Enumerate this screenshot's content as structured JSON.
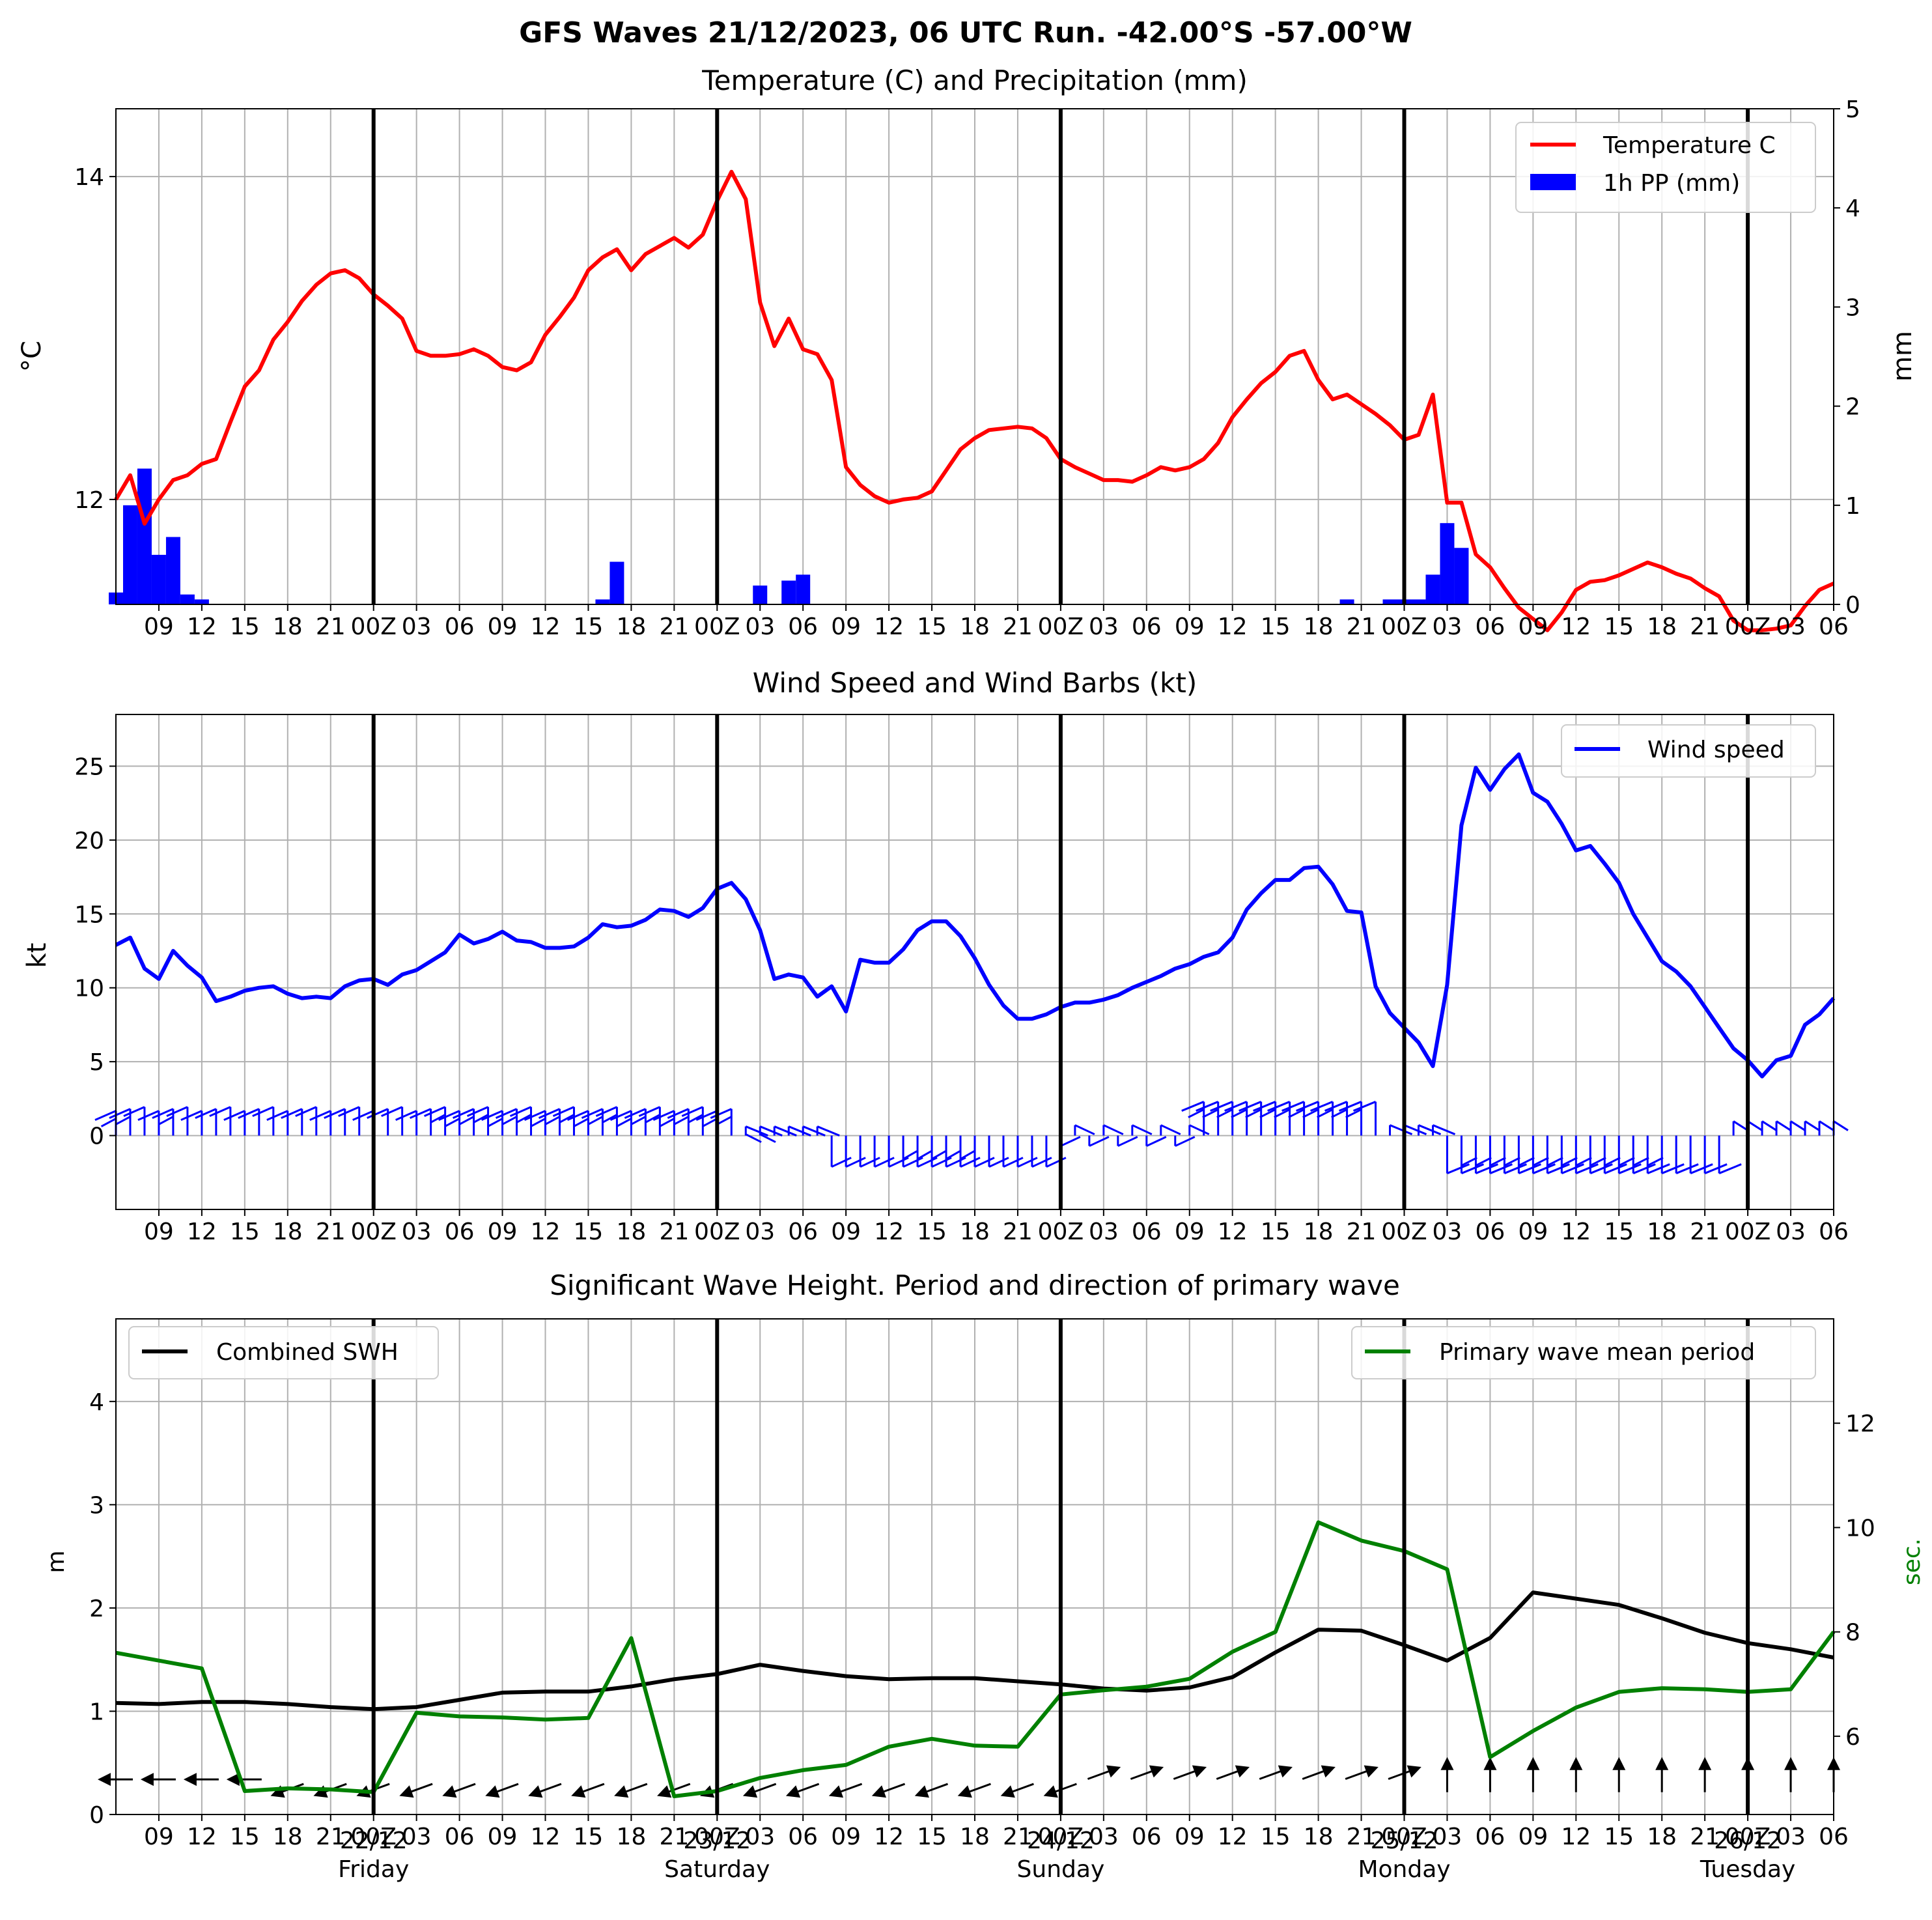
{
  "figure_title": "GFS Waves 21/12/2023, 06 UTC Run. -42.00°S -57.00°W",
  "colors": {
    "temperature": "#ff0000",
    "precip": "#0000ff",
    "wind": "#0000ff",
    "swh": "#000000",
    "period": "#008000",
    "grid": "#b0b0b0"
  },
  "x_axis": {
    "tick_labels": [
      "09",
      "12",
      "15",
      "18",
      "21",
      "00Z",
      "03",
      "06",
      "09",
      "12",
      "15",
      "18",
      "21",
      "00Z",
      "03",
      "06",
      "09",
      "12",
      "15",
      "18",
      "21",
      "00Z",
      "03",
      "06",
      "09",
      "12",
      "15",
      "18",
      "21",
      "00Z",
      "03",
      "06",
      "09",
      "12",
      "15",
      "18",
      "21",
      "00Z",
      "03",
      "06"
    ],
    "day_labels": [
      {
        "date": "22/12",
        "day": "Friday"
      },
      {
        "date": "23/12",
        "day": "Saturday"
      },
      {
        "date": "24/12",
        "day": "Sunday"
      },
      {
        "date": "25/12",
        "day": "Monday"
      },
      {
        "date": "26/12",
        "day": "Tuesday"
      }
    ]
  },
  "chart_data": [
    {
      "type": "line",
      "title": "Temperature (C) and Precipitation (mm)",
      "ylabel": "°C",
      "ylabel_right": "mm",
      "x_start": "2023-12-21 06Z",
      "x_end": "2023-12-26 06Z",
      "x_step_hours": 1,
      "ylim": [
        11.35,
        14.42
      ],
      "yticks": [
        12,
        14
      ],
      "ylim_right": [
        0,
        5
      ],
      "yticks_right": [
        0,
        1,
        2,
        3,
        4,
        5
      ],
      "grid": true,
      "legend": "top-right",
      "legend_entries": [
        "Temperature C",
        "1h PP (mm)"
      ],
      "series": [
        {
          "name": "Temperature C",
          "x_hours": [
            0,
            1,
            2,
            3,
            4,
            5,
            6,
            7,
            8,
            9,
            10,
            11,
            12,
            13,
            14,
            15,
            16,
            17,
            18,
            19,
            20,
            21,
            22,
            23,
            24,
            25,
            26,
            27,
            28,
            29,
            30,
            31,
            32,
            33,
            34,
            35,
            36,
            37,
            38,
            39,
            40,
            41,
            42,
            43,
            44,
            45,
            46,
            47,
            48,
            49,
            50,
            51,
            52,
            53,
            54,
            55,
            56,
            57,
            58,
            59,
            60,
            61,
            62,
            63,
            64,
            65,
            66,
            67,
            68,
            69,
            70,
            71,
            72,
            73,
            74,
            75,
            76,
            77,
            78,
            79,
            80,
            81,
            82,
            83,
            84,
            85,
            86,
            87,
            88,
            89,
            90,
            91,
            92,
            93,
            94,
            95,
            96,
            97,
            98,
            99,
            100,
            101,
            102,
            103,
            104,
            105,
            106,
            107,
            108,
            109,
            110,
            111,
            112,
            113,
            114,
            115,
            116,
            117,
            118,
            119,
            120
          ],
          "values": [
            12.0,
            12.15,
            11.85,
            12.0,
            12.12,
            12.15,
            12.22,
            12.25,
            12.48,
            12.7,
            12.8,
            12.99,
            13.1,
            13.23,
            13.33,
            13.4,
            13.42,
            13.37,
            13.27,
            13.2,
            13.12,
            12.92,
            12.89,
            12.89,
            12.9,
            12.93,
            12.89,
            12.82,
            12.8,
            12.85,
            13.02,
            13.13,
            13.25,
            13.42,
            13.5,
            13.55,
            13.42,
            13.52,
            13.57,
            13.62,
            13.56,
            13.64,
            13.85,
            14.03,
            13.86,
            13.22,
            12.95,
            13.12,
            12.93,
            12.9,
            12.74,
            12.2,
            12.09,
            12.02,
            11.98,
            12.0,
            12.01,
            12.05,
            12.18,
            12.31,
            12.38,
            12.43,
            12.44,
            12.45,
            12.44,
            12.38,
            12.25,
            12.2,
            12.16,
            12.12,
            12.12,
            12.11,
            12.15,
            12.2,
            12.18,
            12.2,
            12.25,
            12.35,
            12.51,
            12.62,
            12.72,
            12.79,
            12.89,
            12.92,
            12.74,
            12.62,
            12.65,
            12.59,
            12.53,
            12.46,
            12.37,
            12.4,
            12.65,
            11.98,
            11.98,
            11.66,
            11.58,
            11.45,
            11.33,
            11.26,
            11.19,
            11.3,
            11.44,
            11.49,
            11.5,
            11.53,
            11.57,
            11.61,
            11.58,
            11.54,
            11.51,
            11.45,
            11.4,
            11.25,
            11.19,
            11.19,
            11.2,
            11.22,
            11.34,
            11.44,
            11.48
          ]
        },
        {
          "name": "1h PP (mm)",
          "x_hours": [
            0,
            1,
            2,
            3,
            4,
            5,
            6,
            7,
            34,
            35,
            45,
            47,
            48,
            86,
            89,
            90,
            91,
            92,
            93,
            94,
            95
          ],
          "values": [
            0.12,
            1.0,
            1.37,
            0.5,
            0.68,
            0.1,
            0.05,
            0.0,
            0.05,
            0.43,
            0.19,
            0.24,
            0.3,
            0.05,
            0.05,
            0.05,
            0.05,
            0.3,
            0.82,
            0.57,
            0.0
          ]
        }
      ]
    },
    {
      "type": "line",
      "title": "Wind Speed and Wind Barbs (kt)",
      "ylabel": "kt",
      "x_start": "2023-12-21 06Z",
      "x_end": "2023-12-26 06Z",
      "x_step_hours": 1,
      "ylim": [
        -5,
        28.5
      ],
      "yticks": [
        0,
        5,
        10,
        15,
        20,
        25
      ],
      "grid": true,
      "legend": "top-right",
      "legend_entries": [
        "Wind speed"
      ],
      "series": [
        {
          "name": "Wind speed",
          "x_hours": [
            0,
            1,
            2,
            3,
            4,
            5,
            6,
            7,
            8,
            9,
            10,
            11,
            12,
            13,
            14,
            15,
            16,
            17,
            18,
            19,
            20,
            21,
            22,
            23,
            24,
            25,
            26,
            27,
            28,
            29,
            30,
            31,
            32,
            33,
            34,
            35,
            36,
            37,
            38,
            39,
            40,
            41,
            42,
            43,
            44,
            45,
            46,
            47,
            48,
            49,
            50,
            51,
            52,
            53,
            54,
            55,
            56,
            57,
            58,
            59,
            60,
            61,
            62,
            63,
            64,
            65,
            66,
            67,
            68,
            69,
            70,
            71,
            72,
            73,
            74,
            75,
            76,
            77,
            78,
            79,
            80,
            81,
            82,
            83,
            84,
            85,
            86,
            87,
            88,
            89,
            90,
            91,
            92,
            93,
            94,
            95,
            96,
            97,
            98,
            99,
            100,
            101,
            102,
            103,
            104,
            105,
            106,
            107,
            108,
            109,
            110,
            111,
            112,
            113,
            114,
            115,
            116,
            117,
            118,
            119,
            120
          ],
          "values": [
            12.9,
            13.4,
            11.3,
            10.6,
            12.5,
            11.5,
            10.7,
            9.1,
            9.4,
            9.8,
            10.0,
            10.1,
            9.6,
            9.3,
            9.4,
            9.3,
            10.1,
            10.5,
            10.6,
            10.2,
            10.9,
            11.2,
            11.8,
            12.4,
            13.6,
            13.0,
            13.3,
            13.8,
            13.2,
            13.1,
            12.7,
            12.7,
            12.8,
            13.4,
            14.3,
            14.1,
            14.2,
            14.6,
            15.3,
            15.2,
            14.8,
            15.4,
            16.7,
            17.1,
            16.0,
            13.9,
            10.6,
            10.9,
            10.7,
            9.4,
            10.1,
            8.4,
            11.9,
            11.7,
            11.7,
            12.6,
            13.9,
            14.5,
            14.5,
            13.5,
            12.0,
            10.2,
            8.8,
            7.9,
            7.9,
            8.2,
            8.7,
            9.0,
            9.0,
            9.2,
            9.5,
            10.0,
            10.4,
            10.8,
            11.3,
            11.6,
            12.1,
            12.4,
            13.4,
            15.3,
            16.4,
            17.3,
            17.3,
            18.1,
            18.2,
            17.0,
            15.2,
            15.1,
            10.1,
            8.3,
            7.3,
            6.3,
            4.7,
            10.2,
            21.0,
            24.9,
            23.4,
            24.8,
            25.8,
            23.2,
            22.6,
            21.1,
            19.3,
            19.6,
            18.4,
            17.1,
            15.0,
            13.4,
            11.8,
            11.1,
            10.1,
            8.7,
            7.3,
            5.9,
            5.1,
            4.0,
            5.1,
            5.4,
            7.5,
            8.2,
            9.3
          ]
        }
      ],
      "barbs": "wind barbs along y = 0"
    },
    {
      "type": "line",
      "title": "Significant Wave Height. Period and direction of primary wave",
      "ylabel": "m",
      "ylabel_right": "sec.",
      "x_start": "2023-12-21 06Z",
      "x_end": "2023-12-26 06Z",
      "x_step_hours": 3,
      "ylim": [
        0,
        4.8
      ],
      "yticks": [
        0,
        1,
        2,
        3,
        4
      ],
      "ylim_right": [
        4.5,
        14
      ],
      "yticks_right": [
        6,
        8,
        10,
        12
      ],
      "grid": true,
      "legend_entries": [
        "Combined SWH",
        "Primary wave mean period"
      ],
      "series": [
        {
          "name": "Combined SWH",
          "x_hours": [
            0,
            3,
            6,
            9,
            12,
            15,
            18,
            21,
            24,
            27,
            30,
            33,
            36,
            39,
            42,
            45,
            48,
            51,
            54,
            57,
            60,
            63,
            66,
            69,
            72,
            75,
            78,
            81,
            84,
            87,
            90,
            93,
            96,
            99,
            102,
            105,
            108,
            111,
            114,
            117,
            120
          ],
          "values": [
            1.08,
            1.07,
            1.09,
            1.09,
            1.07,
            1.04,
            1.02,
            1.04,
            1.11,
            1.18,
            1.19,
            1.19,
            1.24,
            1.31,
            1.36,
            1.45,
            1.39,
            1.34,
            1.31,
            1.32,
            1.32,
            1.29,
            1.26,
            1.22,
            1.2,
            1.23,
            1.33,
            1.57,
            1.79,
            1.78,
            1.64,
            1.49,
            1.71,
            2.15,
            2.09,
            2.03,
            1.9,
            1.76,
            1.66,
            1.6,
            1.52
          ]
        },
        {
          "name": "Primary wave mean period",
          "x_hours": [
            0,
            3,
            6,
            9,
            12,
            15,
            18,
            21,
            24,
            27,
            30,
            33,
            36,
            39,
            42,
            45,
            48,
            51,
            54,
            57,
            60,
            63,
            66,
            69,
            72,
            75,
            78,
            81,
            84,
            87,
            90,
            93,
            96,
            99,
            102,
            105,
            108,
            111,
            114,
            117,
            120
          ],
          "values": [
            7.6,
            7.45,
            7.3,
            4.95,
            5.0,
            4.98,
            4.93,
            6.45,
            6.38,
            6.36,
            6.32,
            6.35,
            7.88,
            4.85,
            4.95,
            5.2,
            5.35,
            5.45,
            5.8,
            5.95,
            5.82,
            5.8,
            6.8,
            6.88,
            6.95,
            7.1,
            7.62,
            8.0,
            10.1,
            9.75,
            9.55,
            9.2,
            5.6,
            6.1,
            6.55,
            6.85,
            6.92,
            6.9,
            6.85,
            6.9,
            8.0
          ]
        }
      ],
      "direction_arrows": "primary wave direction arrows near y = 0.35"
    }
  ]
}
